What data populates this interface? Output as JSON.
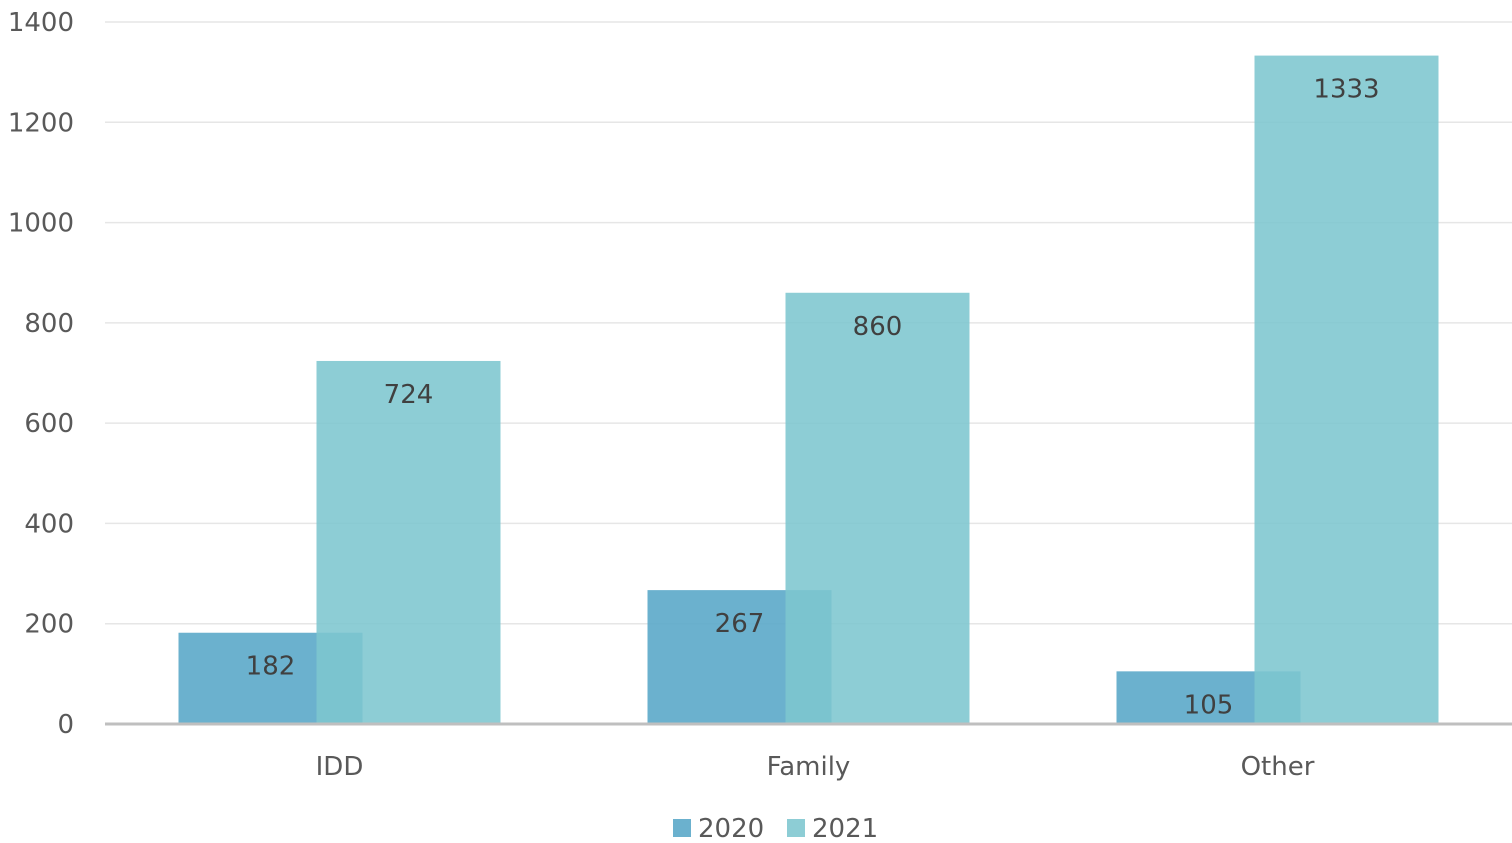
{
  "chart_data": {
    "type": "bar",
    "title": "",
    "xlabel": "",
    "ylabel": "",
    "categories": [
      "IDD",
      "Family",
      "Other"
    ],
    "series": [
      {
        "name": "2020",
        "values": [
          182,
          267,
          105
        ],
        "color": "#5BA8C9"
      },
      {
        "name": "2021",
        "values": [
          724,
          860,
          1333
        ],
        "color": "#7DC6CF"
      }
    ],
    "ylim": [
      0,
      1400
    ],
    "yticks": [
      0,
      200,
      400,
      600,
      800,
      1000,
      1200,
      1400
    ],
    "grid": true,
    "legend": "bottom-center",
    "gridline_color": "#E6E6E6",
    "axis_color": "#BFBFBF"
  }
}
